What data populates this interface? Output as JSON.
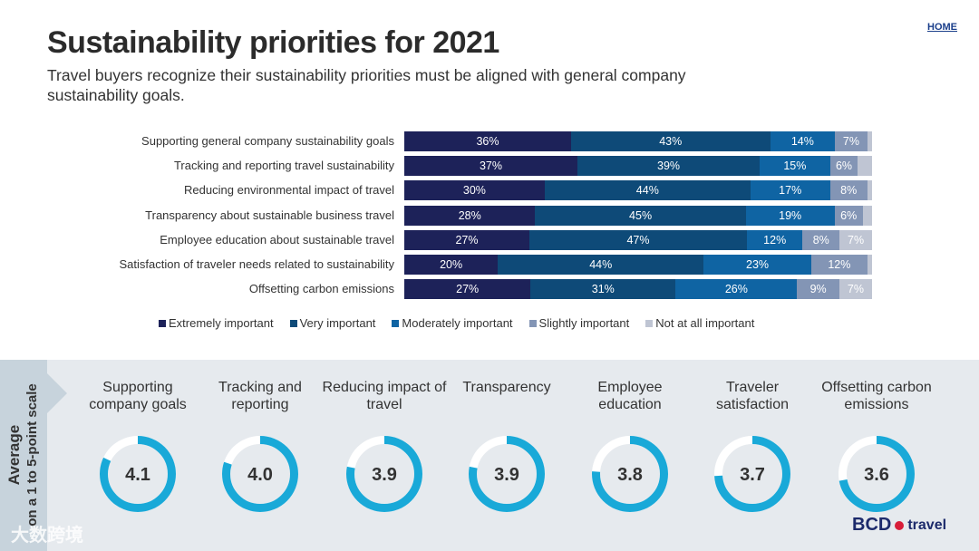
{
  "header": {
    "title": "Sustainability priorities for 2021",
    "subtitle": "Travel buyers recognize their sustainability priorities must be aligned with general company sustainability goals.",
    "home_link": "HOME"
  },
  "chart_data": {
    "type": "bar",
    "orientation": "horizontal-stacked-100",
    "categories": [
      "Supporting general company sustainability goals",
      "Tracking and reporting travel sustainability",
      "Reducing environmental impact of travel",
      "Transparency about sustainable business travel",
      "Employee education about sustainable travel",
      "Satisfaction of traveler needs related to sustainability",
      "Offsetting carbon emissions"
    ],
    "series": [
      {
        "name": "Extremely important",
        "color": "#1d2259",
        "values": [
          36,
          37,
          30,
          28,
          27,
          20,
          27
        ]
      },
      {
        "name": "Very important",
        "color": "#0e4a78",
        "values": [
          43,
          39,
          44,
          45,
          47,
          44,
          31
        ]
      },
      {
        "name": "Moderately important",
        "color": "#0f64a3",
        "values": [
          14,
          15,
          17,
          19,
          12,
          23,
          26
        ]
      },
      {
        "name": "Slightly important",
        "color": "#8395b5",
        "values": [
          7,
          6,
          8,
          6,
          8,
          12,
          9
        ]
      },
      {
        "name": "Not at all important",
        "color": "#bfc5d3",
        "values": [
          1,
          3,
          1,
          2,
          7,
          1,
          7
        ]
      }
    ],
    "label_min": 5,
    "legend": "bottom"
  },
  "averages": {
    "side_label_1": "Average",
    "side_label_2": "on a 1 to 5-point scale",
    "scale_max": 5,
    "items": [
      {
        "title": "Supporting company goals",
        "value": "4.1"
      },
      {
        "title": "Tracking and reporting",
        "value": "4.0"
      },
      {
        "title": "Reducing impact of travel",
        "value": "3.9"
      },
      {
        "title": "Transparency",
        "value": "3.9"
      },
      {
        "title": "Employee education",
        "value": "3.8"
      },
      {
        "title": "Traveler satisfaction",
        "value": "3.7"
      },
      {
        "title": "Offsetting carbon emissions",
        "value": "3.6"
      }
    ]
  },
  "watermark": "大数跨境",
  "logo": {
    "brand": "BCD",
    "suffix": "travel"
  }
}
